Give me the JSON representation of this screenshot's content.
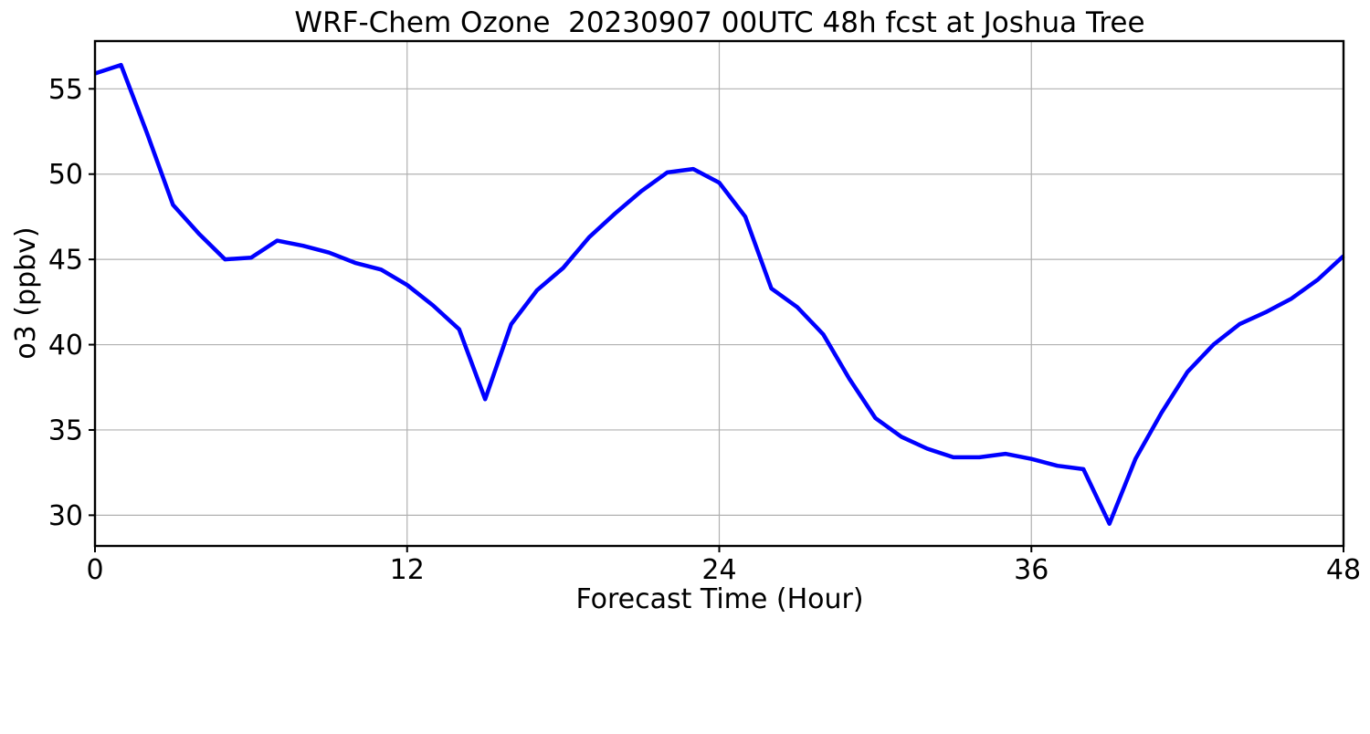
{
  "chart_data": {
    "type": "line",
    "title": "WRF-Chem Ozone  20230907 00UTC 48h fcst at Joshua Tree",
    "xlabel": "Forecast Time (Hour)",
    "ylabel": "o3 (ppbv)",
    "series_name": "o3",
    "x": [
      0,
      1,
      2,
      3,
      4,
      5,
      6,
      7,
      8,
      9,
      10,
      11,
      12,
      13,
      14,
      15,
      16,
      17,
      18,
      19,
      20,
      21,
      22,
      23,
      24,
      25,
      26,
      27,
      28,
      29,
      30,
      31,
      32,
      33,
      34,
      35,
      36,
      37,
      38,
      39,
      40,
      41,
      42,
      43,
      44,
      45,
      46,
      47,
      48
    ],
    "y": [
      55.9,
      56.4,
      52.4,
      48.2,
      46.5,
      45.0,
      45.1,
      46.1,
      45.8,
      45.4,
      44.8,
      44.4,
      43.5,
      42.3,
      40.9,
      36.8,
      41.2,
      43.2,
      44.5,
      46.3,
      47.7,
      49.0,
      50.1,
      50.3,
      49.5,
      47.5,
      43.3,
      42.2,
      40.6,
      38.0,
      35.7,
      34.6,
      33.9,
      33.4,
      33.4,
      33.6,
      33.3,
      32.9,
      32.7,
      29.5,
      33.3,
      36.0,
      38.4,
      40.0,
      41.2,
      41.9,
      42.7,
      43.8,
      45.2
    ],
    "xlim": [
      0,
      48
    ],
    "ylim": [
      28.2,
      57.8
    ],
    "xticks": [
      0,
      12,
      24,
      36,
      48
    ],
    "yticks": [
      30,
      35,
      40,
      45,
      50,
      55
    ],
    "grid": true,
    "grid_color": "#b0b0b0",
    "line_color": "#0000ff",
    "line_width": 4.5,
    "spine_color": "#000000",
    "background": "#ffffff",
    "legend": "none"
  }
}
